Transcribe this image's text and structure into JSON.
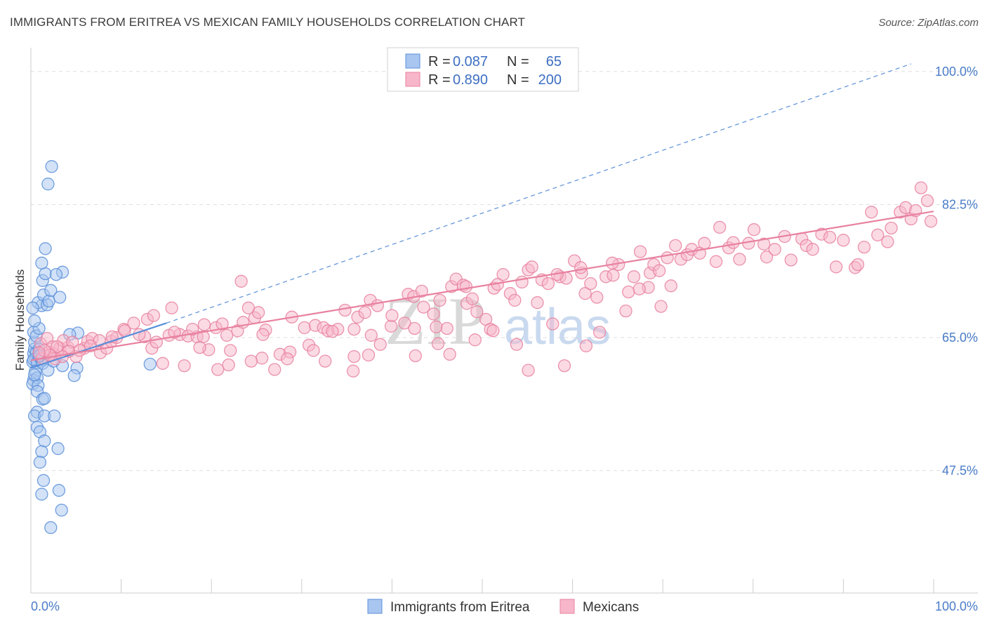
{
  "header": {
    "title": "IMMIGRANTS FROM ERITREA VS MEXICAN FAMILY HOUSEHOLDS CORRELATION CHART",
    "source": "Source: ZipAtlas.com"
  },
  "watermark": {
    "zip": "ZIP",
    "atlas": "atlas"
  },
  "legend": {
    "rows": [
      {
        "r_label": "R =",
        "r_value": "0.087",
        "n_label": "N =",
        "n_value": "65",
        "color": "#a8c6f0"
      },
      {
        "r_label": "R =",
        "r_value": "0.890",
        "n_label": "N =",
        "n_value": "200",
        "color": "#f7b6ca"
      }
    ]
  },
  "bottom_legend": [
    {
      "label": "Immigrants from Eritrea",
      "color": "#a8c6f0"
    },
    {
      "label": "Mexicans",
      "color": "#f7b6ca"
    }
  ],
  "chart_data": {
    "type": "scatter",
    "title": "IMMIGRANTS FROM ERITREA VS MEXICAN FAMILY HOUSEHOLDS CORRELATION CHART",
    "xlabel": "",
    "ylabel": "Family Households",
    "xlim": [
      0,
      100
    ],
    "ylim": [
      31.4,
      102.2
    ],
    "x_tick_labels": [
      "0.0%",
      "100.0%"
    ],
    "y_ticks": [
      47.5,
      65.0,
      82.5,
      100.0
    ],
    "y_tick_labels": [
      "47.5%",
      "65.0%",
      "82.5%",
      "100.0%"
    ],
    "grid": true,
    "legend_position": "top-center",
    "series": [
      {
        "name": "Immigrants from Eritrea",
        "color": "#5b8fd9",
        "fill": "#a8c6f0",
        "points": [
          [
            0.3,
            62.9
          ],
          [
            0.4,
            63.5
          ],
          [
            0.5,
            62.2
          ],
          [
            0.2,
            61.8
          ],
          [
            0.6,
            63.0
          ],
          [
            0.3,
            62.1
          ],
          [
            0.7,
            61.7
          ],
          [
            0.4,
            64.4
          ],
          [
            0.9,
            63.5
          ],
          [
            1.1,
            62.2
          ],
          [
            0.5,
            60.6
          ],
          [
            1.3,
            61.6
          ],
          [
            0.3,
            59.4
          ],
          [
            0.7,
            59.7
          ],
          [
            0.2,
            58.9
          ],
          [
            0.8,
            58.7
          ],
          [
            1.0,
            62.6
          ],
          [
            0.3,
            65.7
          ],
          [
            0.6,
            65.2
          ],
          [
            0.9,
            66.2
          ],
          [
            0.4,
            67.2
          ],
          [
            1.2,
            69.2
          ],
          [
            0.8,
            69.6
          ],
          [
            1.4,
            70.6
          ],
          [
            0.2,
            68.9
          ],
          [
            1.8,
            69.3
          ],
          [
            2.0,
            69.8
          ],
          [
            2.2,
            71.2
          ],
          [
            1.3,
            72.5
          ],
          [
            1.6,
            73.4
          ],
          [
            3.2,
            70.3
          ],
          [
            3.5,
            73.6
          ],
          [
            2.8,
            73.3
          ],
          [
            1.2,
            74.8
          ],
          [
            1.6,
            76.7
          ],
          [
            1.9,
            85.2
          ],
          [
            2.3,
            87.5
          ],
          [
            0.7,
            57.9
          ],
          [
            1.3,
            56.9
          ],
          [
            1.5,
            57.0
          ],
          [
            0.7,
            55.2
          ],
          [
            0.4,
            54.7
          ],
          [
            1.5,
            54.7
          ],
          [
            2.6,
            54.7
          ],
          [
            0.7,
            53.2
          ],
          [
            1.0,
            52.6
          ],
          [
            1.5,
            51.4
          ],
          [
            1.2,
            50.0
          ],
          [
            3.0,
            50.4
          ],
          [
            1.0,
            48.6
          ],
          [
            1.4,
            46.2
          ],
          [
            1.2,
            44.4
          ],
          [
            3.1,
            44.9
          ],
          [
            3.4,
            42.3
          ],
          [
            2.2,
            40.0
          ],
          [
            3.5,
            61.3
          ],
          [
            5.2,
            65.6
          ],
          [
            4.3,
            65.4
          ],
          [
            5.1,
            61.0
          ],
          [
            13.2,
            61.5
          ],
          [
            1.9,
            60.7
          ],
          [
            4.8,
            60.0
          ],
          [
            2.5,
            61.9
          ],
          [
            0.9,
            62.6
          ],
          [
            0.4,
            60.1
          ]
        ]
      },
      {
        "name": "Mexicans",
        "color": "#e8819f",
        "fill": "#f7b6ca",
        "points": [
          [
            1.3,
            62.3
          ],
          [
            2.0,
            63.1
          ],
          [
            2.6,
            62.8
          ],
          [
            1.1,
            64.2
          ],
          [
            3.2,
            63.6
          ],
          [
            2.7,
            62.2
          ],
          [
            4.1,
            63.7
          ],
          [
            5.0,
            62.5
          ],
          [
            1.8,
            64.9
          ],
          [
            3.6,
            64.6
          ],
          [
            2.4,
            63.8
          ],
          [
            4.6,
            64.4
          ],
          [
            5.9,
            63.6
          ],
          [
            6.3,
            64.5
          ],
          [
            7.7,
            63.0
          ],
          [
            8.4,
            63.6
          ],
          [
            6.8,
            64.9
          ],
          [
            8.9,
            64.5
          ],
          [
            9.5,
            65.0
          ],
          [
            10.3,
            66.1
          ],
          [
            11.4,
            66.9
          ],
          [
            12.9,
            67.4
          ],
          [
            13.4,
            63.6
          ],
          [
            12.6,
            65.1
          ],
          [
            13.9,
            64.4
          ],
          [
            15.3,
            65.3
          ],
          [
            16.5,
            65.4
          ],
          [
            15.6,
            68.9
          ],
          [
            17.4,
            65.2
          ],
          [
            18.4,
            65.1
          ],
          [
            17.9,
            66.1
          ],
          [
            19.2,
            66.7
          ],
          [
            19.1,
            65.1
          ],
          [
            19.7,
            63.4
          ],
          [
            20.5,
            66.3
          ],
          [
            21.2,
            66.8
          ],
          [
            21.7,
            65.3
          ],
          [
            22.9,
            65.9
          ],
          [
            23.5,
            67.0
          ],
          [
            24.8,
            67.6
          ],
          [
            25.2,
            68.3
          ],
          [
            26.0,
            66.0
          ],
          [
            23.3,
            72.4
          ],
          [
            24.1,
            68.9
          ],
          [
            25.7,
            65.4
          ],
          [
            27.6,
            62.8
          ],
          [
            28.7,
            63.1
          ],
          [
            30.3,
            66.3
          ],
          [
            31.5,
            66.6
          ],
          [
            32.4,
            66.3
          ],
          [
            32.9,
            65.9
          ],
          [
            34.0,
            66.1
          ],
          [
            34.8,
            68.6
          ],
          [
            35.8,
            66.1
          ],
          [
            36.2,
            67.7
          ],
          [
            37.0,
            68.3
          ],
          [
            37.4,
            62.7
          ],
          [
            37.6,
            69.9
          ],
          [
            38.4,
            69.2
          ],
          [
            39.9,
            66.5
          ],
          [
            41.4,
            66.9
          ],
          [
            41.8,
            70.7
          ],
          [
            42.4,
            70.4
          ],
          [
            43.3,
            71.1
          ],
          [
            43.5,
            69.0
          ],
          [
            44.6,
            68.1
          ],
          [
            44.9,
            66.4
          ],
          [
            45.3,
            69.9
          ],
          [
            46.6,
            71.7
          ],
          [
            47.1,
            72.7
          ],
          [
            47.9,
            71.9
          ],
          [
            48.3,
            69.5
          ],
          [
            48.9,
            70.1
          ],
          [
            49.4,
            68.4
          ],
          [
            50.4,
            67.4
          ],
          [
            51.3,
            71.5
          ],
          [
            51.7,
            72.0
          ],
          [
            52.3,
            73.3
          ],
          [
            53.1,
            70.8
          ],
          [
            54.4,
            72.3
          ],
          [
            55.1,
            73.9
          ],
          [
            55.5,
            74.3
          ],
          [
            56.6,
            72.6
          ],
          [
            57.3,
            72.1
          ],
          [
            58.6,
            73.0
          ],
          [
            59.3,
            72.8
          ],
          [
            60.2,
            75.1
          ],
          [
            61.0,
            73.5
          ],
          [
            61.4,
            70.8
          ],
          [
            62.0,
            72.1
          ],
          [
            62.7,
            70.3
          ],
          [
            63.7,
            73.0
          ],
          [
            64.5,
            73.2
          ],
          [
            65.1,
            74.6
          ],
          [
            66.8,
            73.0
          ],
          [
            67.5,
            76.3
          ],
          [
            68.6,
            73.5
          ],
          [
            69.0,
            74.6
          ],
          [
            69.6,
            73.8
          ],
          [
            70.5,
            75.5
          ],
          [
            71.4,
            77.1
          ],
          [
            72.0,
            75.3
          ],
          [
            72.7,
            75.9
          ],
          [
            73.2,
            76.6
          ],
          [
            74.1,
            76.1
          ],
          [
            74.6,
            77.4
          ],
          [
            75.9,
            75.0
          ],
          [
            76.3,
            79.5
          ],
          [
            77.3,
            76.8
          ],
          [
            77.8,
            77.5
          ],
          [
            78.5,
            75.3
          ],
          [
            79.5,
            77.4
          ],
          [
            80.1,
            79.2
          ],
          [
            81.2,
            77.3
          ],
          [
            81.5,
            75.6
          ],
          [
            82.4,
            76.6
          ],
          [
            83.5,
            78.3
          ],
          [
            84.2,
            75.2
          ],
          [
            85.4,
            78.0
          ],
          [
            85.9,
            77.1
          ],
          [
            86.6,
            76.6
          ],
          [
            87.6,
            78.6
          ],
          [
            88.5,
            78.2
          ],
          [
            89.2,
            74.3
          ],
          [
            90.0,
            77.8
          ],
          [
            91.3,
            74.2
          ],
          [
            91.6,
            74.6
          ],
          [
            92.3,
            76.9
          ],
          [
            93.1,
            81.5
          ],
          [
            93.8,
            78.5
          ],
          [
            94.9,
            77.6
          ],
          [
            95.3,
            79.4
          ],
          [
            96.3,
            81.5
          ],
          [
            96.9,
            82.1
          ],
          [
            97.5,
            80.6
          ],
          [
            98.0,
            81.7
          ],
          [
            98.6,
            84.7
          ],
          [
            99.3,
            83.0
          ],
          [
            99.7,
            80.3
          ],
          [
            70.9,
            71.8
          ],
          [
            68.4,
            71.6
          ],
          [
            66.2,
            71.0
          ],
          [
            64.4,
            74.8
          ],
          [
            60.9,
            74.2
          ],
          [
            58.3,
            73.3
          ],
          [
            56.1,
            69.6
          ],
          [
            53.6,
            69.9
          ],
          [
            50.9,
            66.1
          ],
          [
            48.2,
            71.7
          ],
          [
            46.1,
            66.2
          ],
          [
            45.1,
            64.2
          ],
          [
            42.5,
            66.2
          ],
          [
            40.0,
            67.9
          ],
          [
            37.7,
            65.3
          ],
          [
            35.8,
            62.5
          ],
          [
            33.4,
            65.8
          ],
          [
            30.8,
            64.0
          ],
          [
            28.9,
            67.7
          ],
          [
            27.0,
            60.8
          ],
          [
            25.6,
            62.3
          ],
          [
            24.4,
            61.9
          ],
          [
            21.9,
            61.4
          ],
          [
            20.7,
            60.8
          ],
          [
            18.7,
            63.7
          ],
          [
            17.0,
            61.3
          ],
          [
            15.9,
            65.7
          ],
          [
            13.6,
            67.9
          ],
          [
            12.0,
            65.4
          ],
          [
            10.4,
            65.9
          ],
          [
            9.0,
            65.1
          ],
          [
            7.6,
            64.6
          ],
          [
            6.6,
            63.9
          ],
          [
            5.4,
            63.3
          ],
          [
            4.2,
            63.2
          ],
          [
            3.5,
            62.5
          ],
          [
            2.9,
            63.8
          ],
          [
            2.1,
            62.7
          ],
          [
            1.5,
            63.3
          ],
          [
            0.9,
            63.0
          ],
          [
            14.6,
            61.6
          ],
          [
            22.1,
            63.3
          ],
          [
            28.4,
            62.2
          ],
          [
            31.3,
            63.3
          ],
          [
            32.6,
            61.9
          ],
          [
            35.7,
            60.6
          ],
          [
            38.7,
            64.1
          ],
          [
            42.6,
            62.6
          ],
          [
            46.4,
            62.8
          ],
          [
            49.2,
            64.7
          ],
          [
            51.2,
            65.9
          ],
          [
            53.8,
            64.1
          ],
          [
            55.1,
            60.7
          ],
          [
            57.8,
            66.8
          ],
          [
            59.1,
            61.3
          ],
          [
            61.5,
            63.9
          ],
          [
            63.0,
            65.7
          ],
          [
            65.9,
            68.5
          ],
          [
            67.4,
            71.4
          ],
          [
            69.8,
            69.1
          ]
        ]
      }
    ],
    "trend_lines": [
      {
        "series": "Immigrants from Eritrea",
        "style": "solid",
        "x": [
          0.0,
          15.0
        ],
        "y": [
          61.0,
          66.9
        ]
      },
      {
        "series": "Immigrants from Eritrea",
        "style": "dashed",
        "x": [
          15.0,
          97.5
        ],
        "y": [
          66.9,
          101.0
        ]
      },
      {
        "series": "Mexicans",
        "style": "solid",
        "x": [
          0.0,
          100.0
        ],
        "y": [
          62.0,
          81.6
        ]
      }
    ]
  }
}
